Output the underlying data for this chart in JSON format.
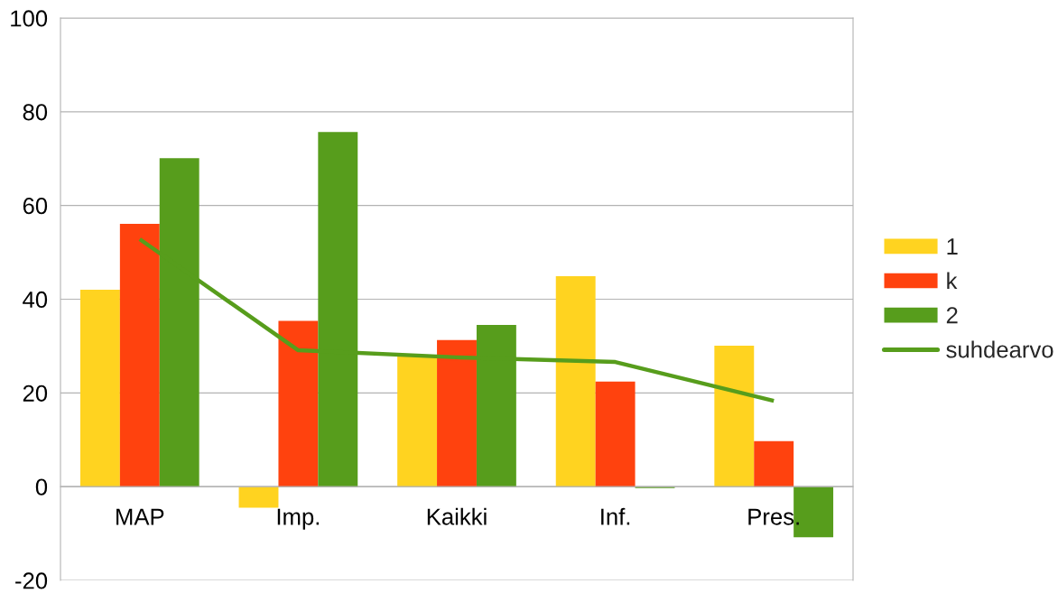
{
  "chart_data": {
    "type": "bar",
    "categories": [
      "MAP",
      "Imp.",
      "Kaikki",
      "Inf.",
      "Pres."
    ],
    "series": [
      {
        "name": "1",
        "color": "#ffd320",
        "values": [
          42.0,
          -4.5,
          28.0,
          44.9,
          30.1
        ]
      },
      {
        "name": "k",
        "color": "#ff420e",
        "values": [
          56.1,
          35.4,
          31.3,
          22.4,
          9.7
        ]
      },
      {
        "name": "2",
        "color": "#579d1c",
        "values": [
          70.1,
          75.7,
          34.5,
          -0.3,
          -10.8
        ]
      },
      {
        "name": "suhdearvo",
        "type": "line",
        "color": "#579d1c",
        "values": [
          52.8,
          29.1,
          27.6,
          26.6,
          18.3
        ]
      }
    ],
    "ylim": [
      -20,
      100
    ],
    "yticks": [
      -20,
      0,
      20,
      40,
      60,
      80,
      100
    ],
    "grid": "y",
    "legend": "right"
  }
}
